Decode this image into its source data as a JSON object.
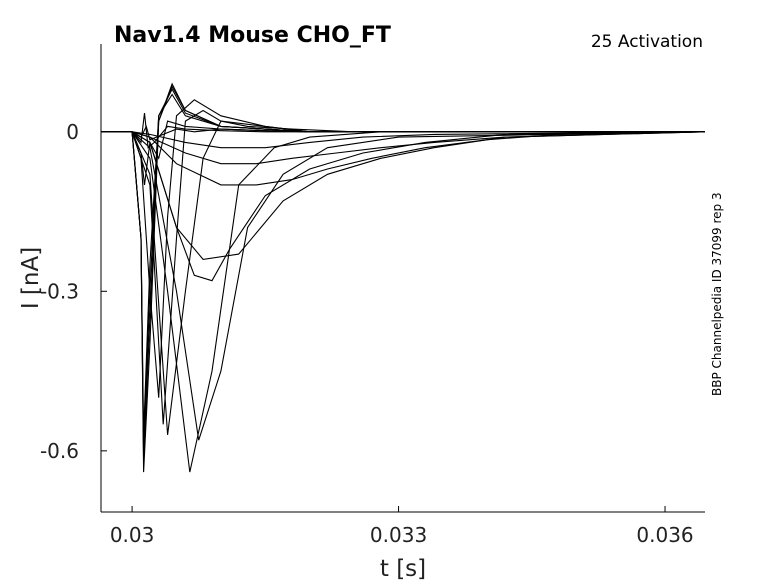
{
  "chart_data": {
    "type": "line",
    "title": "Nav1.4  Mouse  CHO_FT",
    "subtitle": "25  Activation",
    "side_label": "BBP Channelpedia ID 37099 rep 3",
    "xlabel": "t [s]",
    "ylabel": "I [nA]",
    "xlim": [
      0.02965,
      0.03645
    ],
    "ylim": [
      -0.715,
      0.165
    ],
    "xticks": [
      0.03,
      0.033,
      0.036
    ],
    "xtick_labels": [
      "0.03",
      "0.033",
      "0.036"
    ],
    "yticks": [
      0,
      -0.3,
      -0.6
    ],
    "ytick_labels": [
      "0",
      "-0.3",
      "-0.6"
    ],
    "grid": false,
    "series": [
      {
        "x": [
          0.02965,
          0.03,
          0.0301,
          0.03016,
          0.0302,
          0.03035,
          0.0305,
          0.0307,
          0.031,
          0.0315,
          0.032,
          0.0325,
          0.03645
        ],
        "y": [
          0,
          0,
          -0.01,
          0.01,
          -0.015,
          -0.005,
          0.005,
          0.0,
          0.005,
          0.002,
          0.0,
          0.0,
          0.0
        ]
      },
      {
        "x": [
          0.02965,
          0.03,
          0.0301,
          0.03014,
          0.03018,
          0.03025,
          0.0304,
          0.0306,
          0.031,
          0.0315,
          0.032,
          0.03645
        ],
        "y": [
          0,
          0,
          -0.02,
          0.035,
          -0.03,
          -0.02,
          0.01,
          0.005,
          0.002,
          0.0,
          0.0,
          0.0
        ]
      },
      {
        "x": [
          0.02965,
          0.03,
          0.0301,
          0.03014,
          0.0302,
          0.0303,
          0.0304,
          0.0306,
          0.031,
          0.0315,
          0.032,
          0.03645
        ],
        "y": [
          0,
          0,
          -0.04,
          -0.1,
          -0.02,
          -0.05,
          0.02,
          0.01,
          0.005,
          0.002,
          0.0,
          0.0
        ]
      },
      {
        "x": [
          0.02965,
          0.03,
          0.0301,
          0.03013,
          0.0302,
          0.0303,
          0.03045,
          0.0306,
          0.031,
          0.032,
          0.03645
        ],
        "y": [
          0,
          0,
          -0.2,
          -0.64,
          -0.4,
          0.02,
          0.09,
          0.04,
          0.01,
          0.0,
          0.0
        ]
      },
      {
        "x": [
          0.02965,
          0.03,
          0.0301,
          0.03013,
          0.0302,
          0.0303,
          0.03045,
          0.0306,
          0.031,
          0.032,
          0.03645
        ],
        "y": [
          0,
          0,
          -0.2,
          -0.62,
          -0.35,
          0.02,
          0.085,
          0.04,
          0.01,
          0.0,
          0.0
        ]
      },
      {
        "x": [
          0.02965,
          0.03,
          0.0301,
          0.03013,
          0.0302,
          0.0303,
          0.03045,
          0.0306,
          0.031,
          0.032,
          0.03645
        ],
        "y": [
          0,
          0,
          -0.2,
          -0.6,
          -0.3,
          0.03,
          0.08,
          0.035,
          0.01,
          0.0,
          0.0
        ]
      },
      {
        "x": [
          0.02965,
          0.03,
          0.0301,
          0.03013,
          0.0302,
          0.0303,
          0.03045,
          0.0306,
          0.031,
          0.032,
          0.03645
        ],
        "y": [
          0,
          0,
          -0.2,
          -0.57,
          -0.25,
          0.03,
          0.07,
          0.03,
          0.01,
          0.0,
          0.0
        ]
      },
      {
        "x": [
          0.02965,
          0.03,
          0.0301,
          0.0302,
          0.0303,
          0.0304,
          0.0305,
          0.0307,
          0.031,
          0.0315,
          0.032,
          0.03645
        ],
        "y": [
          0,
          0,
          -0.05,
          -0.3,
          -0.5,
          -0.16,
          0.03,
          0.06,
          0.03,
          0.01,
          0.0,
          0.0
        ]
      },
      {
        "x": [
          0.02965,
          0.03,
          0.0302,
          0.03035,
          0.0305,
          0.0306,
          0.0308,
          0.031,
          0.0315,
          0.032,
          0.03645
        ],
        "y": [
          0,
          0,
          -0.1,
          -0.55,
          -0.2,
          0.02,
          0.04,
          0.02,
          0.01,
          0.0,
          0.0
        ]
      },
      {
        "x": [
          0.02965,
          0.03,
          0.0302,
          0.0304,
          0.0306,
          0.0308,
          0.031,
          0.0313,
          0.0318,
          0.0325,
          0.03645
        ],
        "y": [
          0,
          0,
          -0.08,
          -0.57,
          -0.3,
          -0.05,
          0.02,
          0.01,
          0.005,
          0.0,
          0.0
        ]
      },
      {
        "x": [
          0.02965,
          0.03,
          0.0302,
          0.0304,
          0.03065,
          0.0309,
          0.0312,
          0.0316,
          0.032,
          0.0328,
          0.03645
        ],
        "y": [
          0,
          0,
          -0.05,
          -0.3,
          -0.64,
          -0.45,
          -0.1,
          -0.03,
          -0.01,
          0.0,
          0.0
        ]
      },
      {
        "x": [
          0.02965,
          0.03,
          0.0302,
          0.0305,
          0.03075,
          0.031,
          0.0313,
          0.0317,
          0.0322,
          0.033,
          0.03645
        ],
        "y": [
          0,
          0,
          -0.03,
          -0.3,
          -0.58,
          -0.45,
          -0.18,
          -0.08,
          -0.03,
          -0.01,
          0.0
        ]
      },
      {
        "x": [
          0.02965,
          0.03,
          0.0302,
          0.0305,
          0.0307,
          0.0309,
          0.0311,
          0.0315,
          0.032,
          0.0326,
          0.0333,
          0.0342,
          0.03645
        ],
        "y": [
          0,
          0,
          -0.02,
          -0.18,
          -0.27,
          -0.28,
          -0.22,
          -0.12,
          -0.07,
          -0.04,
          -0.02,
          -0.005,
          0.0
        ]
      },
      {
        "x": [
          0.02965,
          0.03,
          0.0302,
          0.0305,
          0.0308,
          0.0312,
          0.0317,
          0.0322,
          0.0328,
          0.0334,
          0.0342,
          0.03645
        ],
        "y": [
          0,
          0,
          -0.02,
          -0.18,
          -0.24,
          -0.23,
          -0.13,
          -0.08,
          -0.05,
          -0.03,
          -0.01,
          0.0
        ]
      },
      {
        "x": [
          0.02965,
          0.03,
          0.0302,
          0.0305,
          0.031,
          0.0314,
          0.0318,
          0.0322,
          0.0327,
          0.0333,
          0.034,
          0.0348,
          0.03645
        ],
        "y": [
          0,
          0,
          -0.01,
          -0.06,
          -0.1,
          -0.1,
          -0.09,
          -0.07,
          -0.05,
          -0.03,
          -0.015,
          -0.005,
          0.0
        ]
      },
      {
        "x": [
          0.02965,
          0.03,
          0.0302,
          0.0306,
          0.031,
          0.0314,
          0.0318,
          0.0323,
          0.0328,
          0.0334,
          0.0342,
          0.03645
        ],
        "y": [
          0,
          0,
          -0.01,
          -0.04,
          -0.06,
          -0.06,
          -0.05,
          -0.04,
          -0.03,
          -0.02,
          -0.01,
          0.0
        ]
      },
      {
        "x": [
          0.02965,
          0.03,
          0.0302,
          0.0306,
          0.031,
          0.0315,
          0.032,
          0.0326,
          0.0334,
          0.03645
        ],
        "y": [
          0,
          0,
          -0.005,
          -0.02,
          -0.03,
          -0.03,
          -0.02,
          -0.01,
          -0.005,
          0.0
        ]
      }
    ]
  }
}
